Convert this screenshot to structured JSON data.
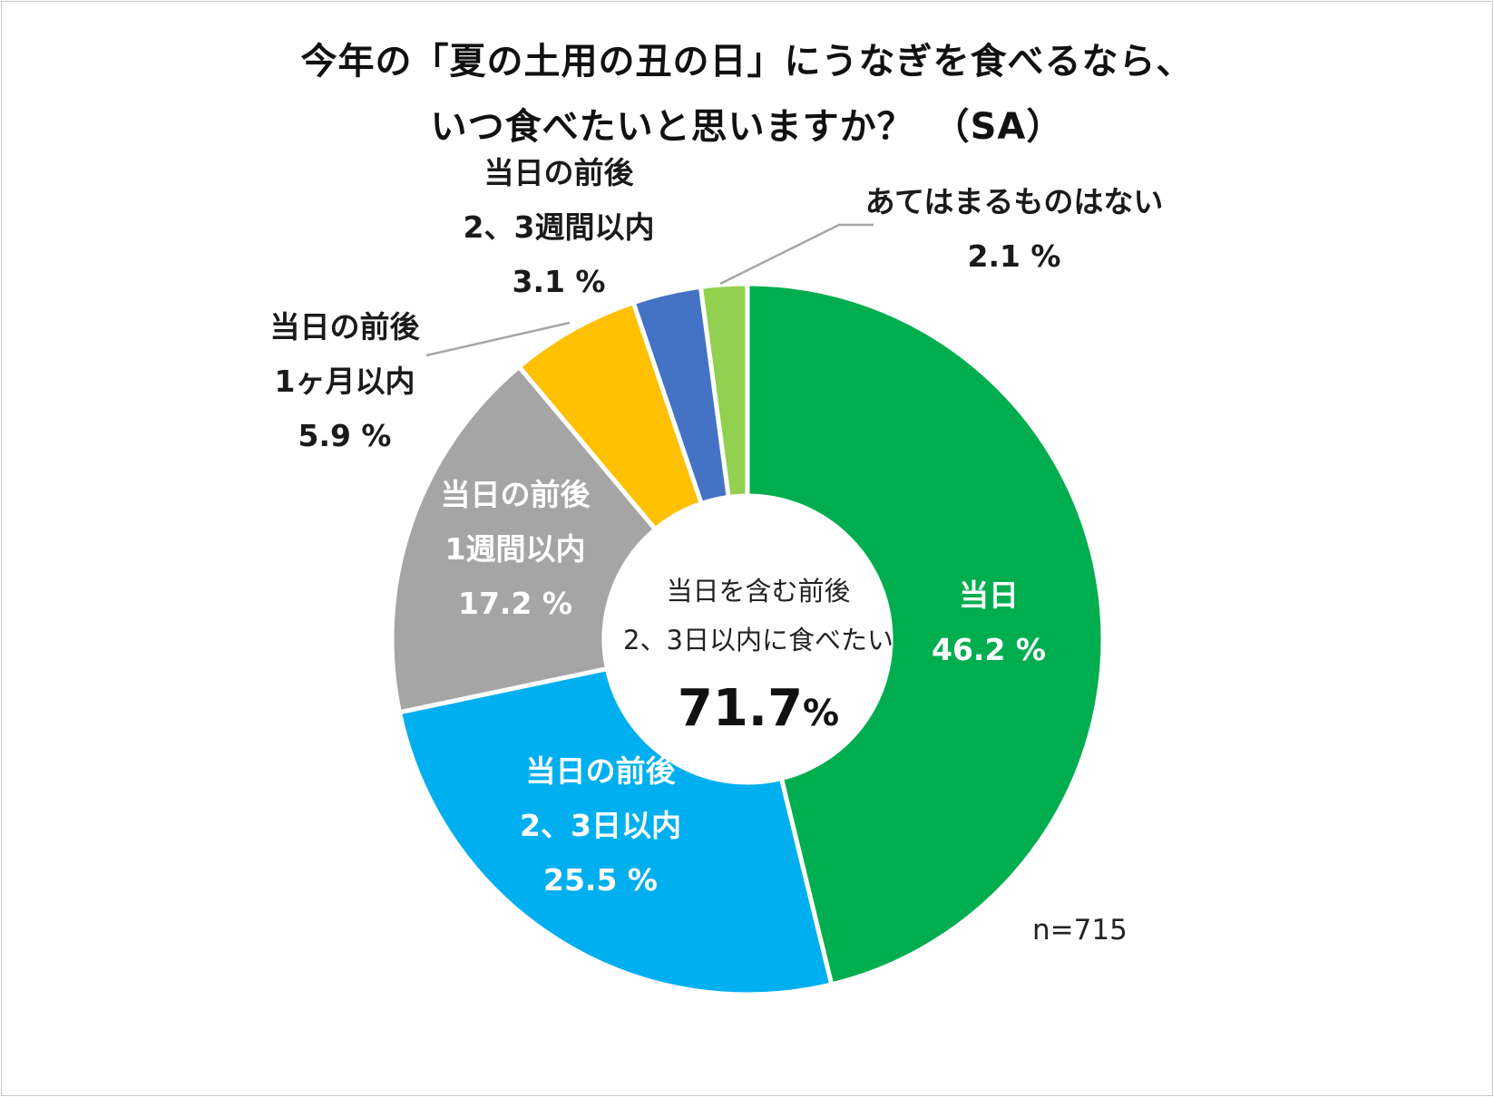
{
  "title_lines": [
    "今年の「夏の土用の丑の日」にうなぎを食べるなら、",
    "いつ食べたいと思いますか？　（SA）"
  ],
  "sample_size": "n=715",
  "center": {
    "line1": "当日を含む前後",
    "line2": "2、3日以内に食べたい",
    "value": "71.7",
    "unit": "%"
  },
  "chart_data": {
    "type": "pie",
    "variant": "donut",
    "title": "今年の「夏の土用の丑の日」にうなぎを食べるなら、いつ食べたいと思いますか？　（SA）",
    "slices": [
      {
        "label_lines": [
          "当日"
        ],
        "value": 46.2,
        "value_text": "46.2 %",
        "color": "#00AE4F",
        "label_color": "#ffffff"
      },
      {
        "label_lines": [
          "当日の前後",
          "2、3日以内"
        ],
        "value": 25.5,
        "value_text": "25.5 %",
        "color": "#00AFEF",
        "label_color": "#ffffff"
      },
      {
        "label_lines": [
          "当日の前後",
          "1週間以内"
        ],
        "value": 17.2,
        "value_text": "17.2 %",
        "color": "#A5A5A5",
        "label_color": "#ffffff"
      },
      {
        "label_lines": [
          "当日の前後",
          "1ヶ月以内"
        ],
        "value": 5.9,
        "value_text": "5.9 %",
        "color": "#FFC000",
        "label_color": "#1a1a1a"
      },
      {
        "label_lines": [
          "当日の前後",
          "2、3週間以内"
        ],
        "value": 3.1,
        "value_text": "3.1 %",
        "color": "#4472C4",
        "label_color": "#1a1a1a"
      },
      {
        "label_lines": [
          "あてはまるものはない"
        ],
        "value": 2.1,
        "value_text": "2.1 %",
        "color": "#92D050",
        "label_color": "#1a1a1a"
      }
    ],
    "start_angle": "12 o'clock",
    "direction": "clockwise",
    "legend": "none",
    "sample_size": "n=715"
  }
}
